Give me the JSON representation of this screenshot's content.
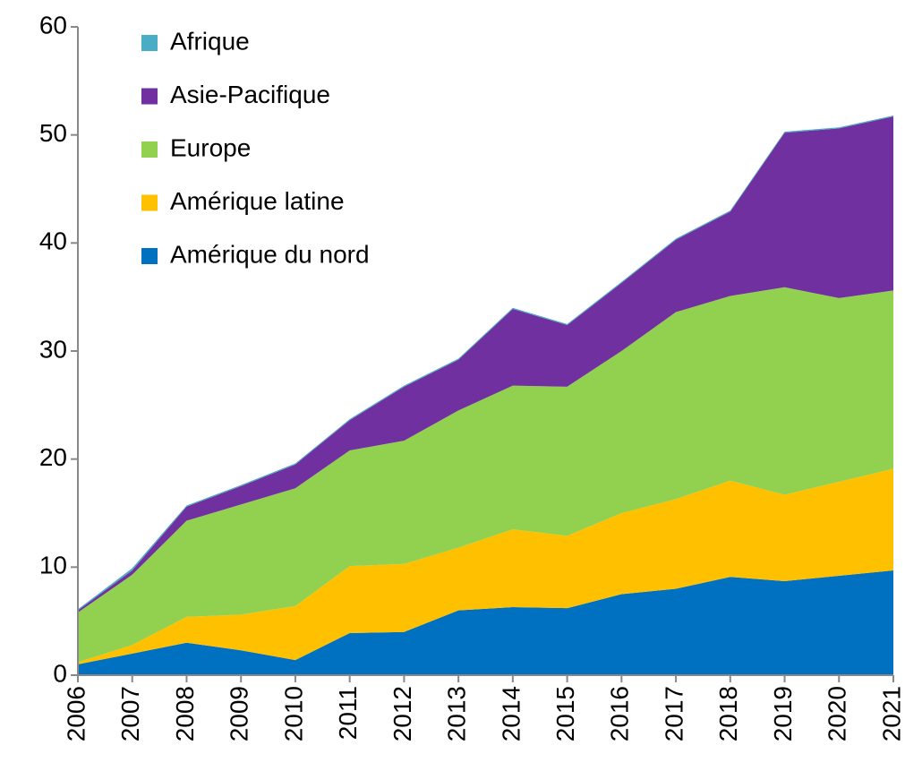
{
  "chart_data": {
    "type": "stacked_area",
    "x": [
      2006,
      2007,
      2008,
      2009,
      2010,
      2011,
      2012,
      2013,
      2014,
      2015,
      2016,
      2017,
      2018,
      2019,
      2020,
      2021
    ],
    "xlim": [
      2006,
      2021
    ],
    "ylim": [
      0,
      60
    ],
    "yticks": [
      0,
      10,
      20,
      30,
      40,
      50,
      60
    ],
    "series": [
      {
        "name": "Amérique du nord",
        "color": "#0070c0",
        "values": [
          1.0,
          2.0,
          3.0,
          2.3,
          1.4,
          3.9,
          4.0,
          6.0,
          6.3,
          6.2,
          7.5,
          8.0,
          9.1,
          8.7,
          9.2,
          9.7
        ]
      },
      {
        "name": "Amérique latine",
        "color": "#ffc000",
        "values": [
          0.2,
          0.8,
          2.4,
          3.3,
          5.0,
          6.2,
          6.3,
          5.8,
          7.2,
          6.7,
          7.5,
          8.3,
          8.9,
          8.0,
          8.7,
          9.4
        ]
      },
      {
        "name": "Europe",
        "color": "#92d050",
        "values": [
          4.6,
          6.5,
          8.9,
          10.2,
          10.9,
          10.7,
          11.4,
          12.7,
          13.3,
          13.8,
          15.0,
          17.3,
          17.1,
          19.2,
          17.0,
          16.5
        ]
      },
      {
        "name": "Asie-Pacifique",
        "color": "#7030a0",
        "values": [
          0.2,
          0.4,
          1.3,
          1.7,
          2.2,
          2.8,
          5.0,
          4.7,
          7.1,
          5.7,
          6.3,
          6.7,
          7.8,
          14.3,
          15.7,
          16.1
        ]
      },
      {
        "name": "Afrique",
        "color": "#4bacc6",
        "values": [
          0.1,
          0.2,
          0.1,
          0.1,
          0.1,
          0.1,
          0.1,
          0.1,
          0.1,
          0.1,
          0.1,
          0.1,
          0.1,
          0.1,
          0.1,
          0.1
        ]
      }
    ]
  }
}
